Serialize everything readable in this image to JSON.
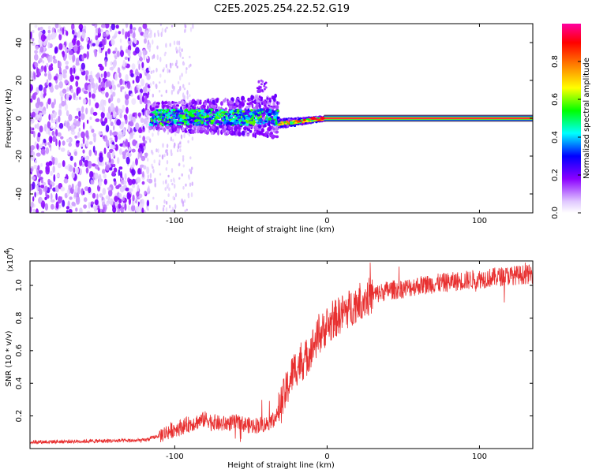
{
  "title": "C2E5.2025.254.22.52.G19",
  "chart_data": [
    {
      "type": "heatmap",
      "name": "spectrogram",
      "xlabel": "Height of straight line (km)",
      "ylabel": "Frequency (Hz)",
      "xlim": [
        -195,
        135
      ],
      "ylim": [
        -50,
        50
      ],
      "x_ticks": [
        -100,
        0,
        100
      ],
      "x_tick_labels": [
        "-100",
        "0",
        "100"
      ],
      "y_ticks": [
        -40,
        -20,
        0,
        20,
        40
      ],
      "y_tick_labels": [
        "-40",
        "-20",
        "0",
        "20",
        "40"
      ],
      "colorbar": {
        "label": "Normalized spectral amplitude",
        "range": [
          0,
          1
        ],
        "ticks": [
          0.0,
          0.2,
          0.4,
          0.6,
          0.8
        ],
        "tick_labels": [
          "0.0",
          "0.2",
          "0.4",
          "0.6",
          "0.8"
        ]
      },
      "regions": [
        {
          "name": "noise",
          "x_range": [
            -195,
            -116
          ],
          "f_range": [
            -50,
            50
          ],
          "amplitude": 0.15
        },
        {
          "name": "transition",
          "x_range": [
            -116,
            -32
          ],
          "f_center": 0,
          "f_halfwidth": 4,
          "amplitude": 0.4
        },
        {
          "name": "converging",
          "x_range": [
            -32,
            0
          ],
          "f_center": -2,
          "f_halfwidth": 2,
          "amplitude": 0.7
        },
        {
          "name": "carrier",
          "x_range": [
            0,
            135
          ],
          "f_center": 0,
          "f_halfwidth": 1,
          "amplitude": 1.0
        }
      ]
    },
    {
      "type": "line",
      "name": "snr",
      "xlabel": "Height of straight line (km)",
      "ylabel": "SNR (10 * v/v)",
      "y_scale_label": "(x10",
      "y_scale_exponent": "4",
      "xlim": [
        -195,
        135
      ],
      "ylim": [
        0,
        1.15
      ],
      "x_ticks": [
        -100,
        0,
        100
      ],
      "x_tick_labels": [
        "-100",
        "0",
        "100"
      ],
      "y_ticks": [
        0.2,
        0.4,
        0.6,
        0.8,
        1.0
      ],
      "y_tick_labels": [
        "0.2",
        "0.4",
        "0.6",
        "0.8",
        "1.0"
      ],
      "color": "#e83030",
      "series": [
        {
          "name": "SNR",
          "x": [
            -195,
            -120,
            -110,
            -100,
            -90,
            -80,
            -70,
            -60,
            -50,
            -40,
            -33,
            -27,
            -22,
            -18,
            -14,
            -10,
            -6,
            -2,
            2,
            6,
            10,
            15,
            20,
            25,
            30,
            40,
            50,
            60,
            70,
            80,
            90,
            100,
            110,
            120,
            135
          ],
          "y": [
            0.04,
            0.05,
            0.08,
            0.12,
            0.15,
            0.18,
            0.15,
            0.16,
            0.14,
            0.15,
            0.2,
            0.35,
            0.48,
            0.52,
            0.55,
            0.62,
            0.68,
            0.73,
            0.76,
            0.8,
            0.83,
            0.86,
            0.9,
            0.92,
            0.94,
            0.97,
            0.98,
            1.0,
            1.01,
            1.02,
            1.03,
            1.04,
            1.05,
            1.06,
            1.07
          ]
        }
      ]
    }
  ]
}
